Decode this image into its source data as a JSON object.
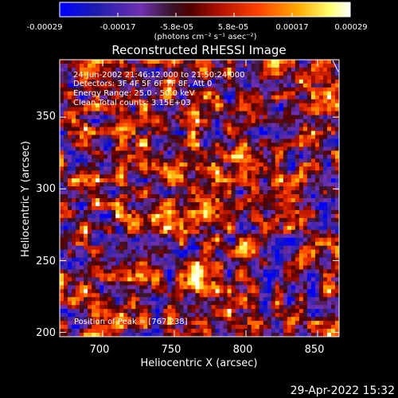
{
  "chart_data": {
    "type": "heatmap",
    "title": "Reconstructed RHESSI Image",
    "xlabel": "Heliocentric X (arcsec)",
    "ylabel": "Heliocentric Y (arcsec)",
    "xlim": [
      670,
      865
    ],
    "ylim": [
      197,
      390
    ],
    "x_ticks": [
      700,
      750,
      800,
      850
    ],
    "y_ticks": [
      200,
      250,
      300,
      350
    ],
    "colorbar": {
      "range": [
        -0.00029,
        0.00029
      ],
      "tick_labels": [
        "-0.00029",
        "-0.00017",
        "-5.8e-05",
        "5.8e-05",
        "0.00017",
        "0.00029"
      ],
      "units": "(photons cm⁻² s⁻¹ asec⁻²)",
      "colormap": [
        "#0000ff",
        "#1c1cb0",
        "#7030b0",
        "#3a1530",
        "#500000",
        "#b01000",
        "#ff4000",
        "#ffaa00",
        "#ffff70",
        "#ffffff"
      ]
    },
    "annotations": [
      "24-Jun-2002 21:46:12.000 to 21:50:24.000",
      "Detectors: 3F 4F 5F 6F 7F 8F, Att 0",
      "Energy Range: 25.0 - 50.0 keV",
      "Clean     Total counts: 3.15E+03"
    ],
    "peak_label": "Position of Peak = [767,238]",
    "peak": [
      767,
      238
    ],
    "grid": false
  },
  "footer": {
    "date": "29-Apr-2022 15:32"
  }
}
